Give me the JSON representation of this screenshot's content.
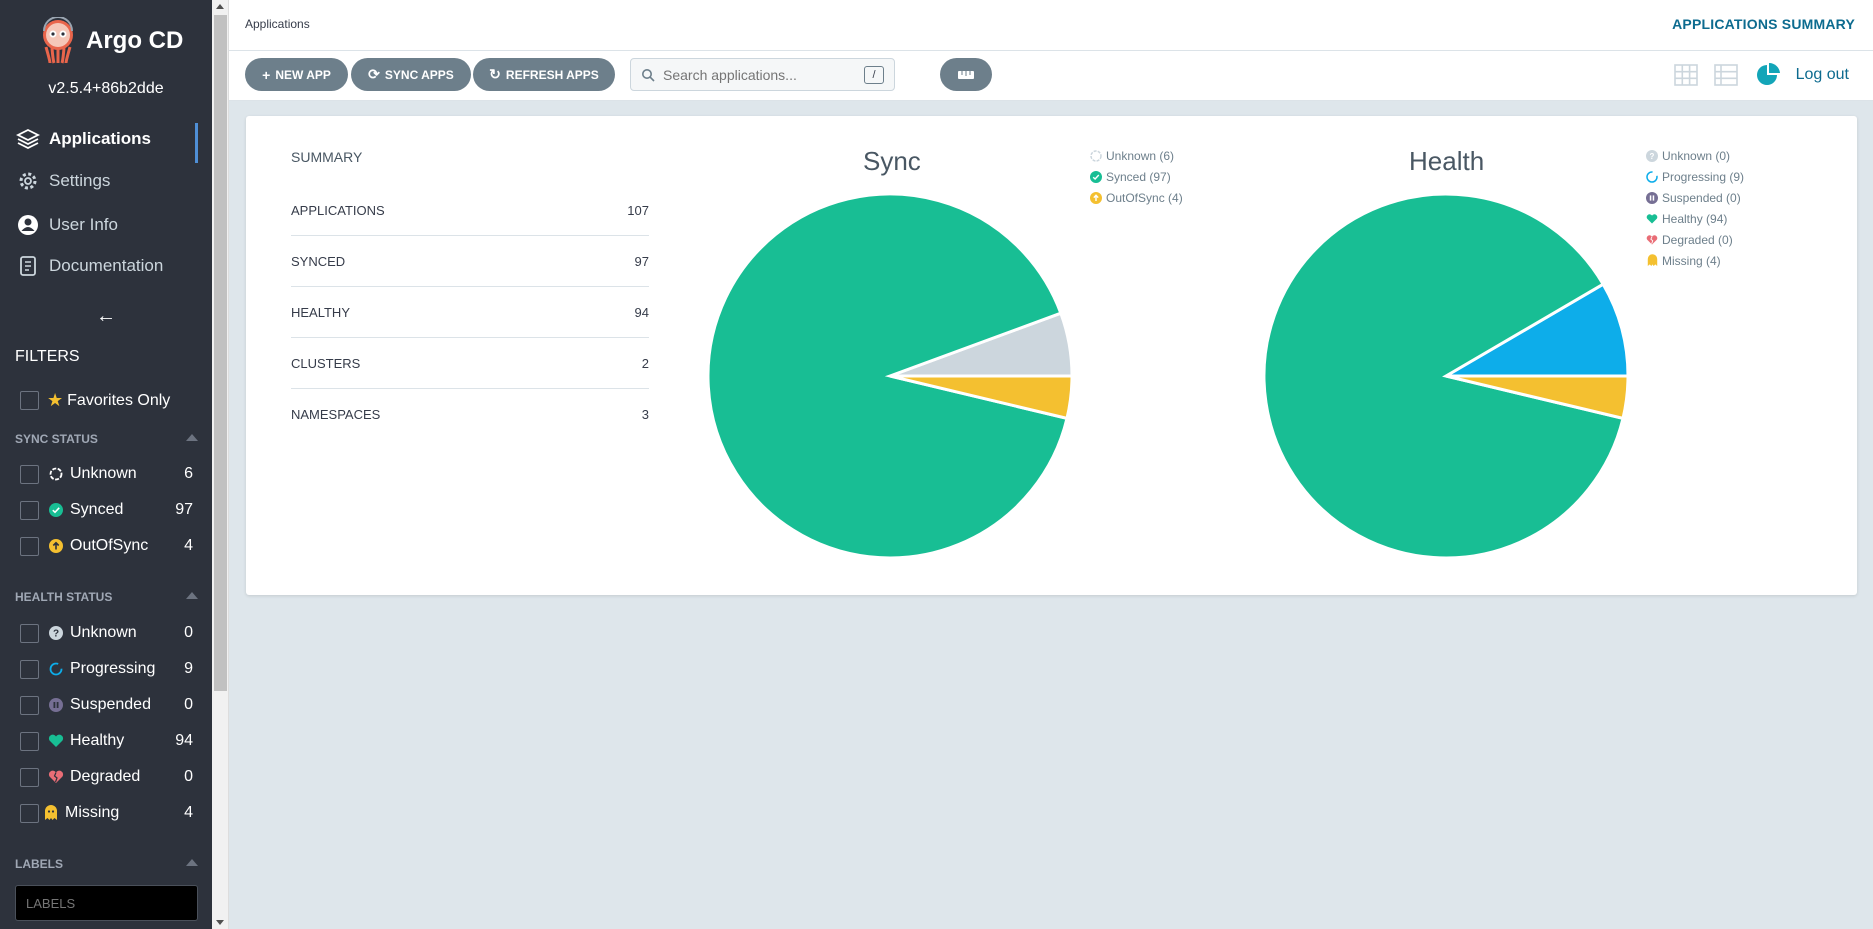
{
  "sidebar": {
    "brand": "Argo CD",
    "version": "v2.5.4+86b2dde",
    "nav": [
      {
        "label": "Applications",
        "icon": "layers-icon",
        "active": true
      },
      {
        "label": "Settings",
        "icon": "gear-icon"
      },
      {
        "label": "User Info",
        "icon": "user-icon"
      },
      {
        "label": "Documentation",
        "icon": "book-icon"
      }
    ],
    "filters_title": "FILTERS",
    "favorites_label": "Favorites Only",
    "sync_status": {
      "title": "SYNC STATUS",
      "items": [
        {
          "label": "Unknown",
          "count": "6"
        },
        {
          "label": "Synced",
          "count": "97"
        },
        {
          "label": "OutOfSync",
          "count": "4"
        }
      ]
    },
    "health_status": {
      "title": "HEALTH STATUS",
      "items": [
        {
          "label": "Unknown",
          "count": "0"
        },
        {
          "label": "Progressing",
          "count": "9"
        },
        {
          "label": "Suspended",
          "count": "0"
        },
        {
          "label": "Healthy",
          "count": "94"
        },
        {
          "label": "Degraded",
          "count": "0"
        },
        {
          "label": "Missing",
          "count": "4"
        }
      ]
    },
    "labels": {
      "title": "LABELS",
      "placeholder": "LABELS"
    }
  },
  "header": {
    "breadcrumb": "Applications",
    "page_title": "APPLICATIONS SUMMARY"
  },
  "toolbar": {
    "new_app": "NEW APP",
    "sync_apps": "SYNC APPS",
    "refresh_apps": "REFRESH APPS",
    "search_placeholder": "Search applications...",
    "search_shortcut": "/",
    "logout": "Log out"
  },
  "summary": {
    "title": "SUMMARY",
    "rows": [
      {
        "key": "APPLICATIONS",
        "value": "107"
      },
      {
        "key": "SYNCED",
        "value": "97"
      },
      {
        "key": "HEALTHY",
        "value": "94"
      },
      {
        "key": "CLUSTERS",
        "value": "2"
      },
      {
        "key": "NAMESPACES",
        "value": "3"
      }
    ]
  },
  "colors": {
    "healthy": "#18be94",
    "warning": "#f4c030",
    "unknown": "#ccd6dd",
    "progressing": "#0dadea",
    "suspended": "#766f94",
    "degraded": "#e96d76",
    "accent": "#0d6b8f"
  },
  "chart_data": [
    {
      "type": "pie",
      "title": "Sync",
      "categories": [
        "Unknown",
        "Synced",
        "OutOfSync"
      ],
      "legend": [
        "Unknown (6)",
        "Synced (97)",
        "OutOfSync (4)"
      ],
      "values": [
        6,
        97,
        4
      ],
      "colors": [
        "#ccd6dd",
        "#18be94",
        "#f4c030"
      ],
      "legend_position": "top-right"
    },
    {
      "type": "pie",
      "title": "Health",
      "categories": [
        "Unknown",
        "Progressing",
        "Suspended",
        "Healthy",
        "Degraded",
        "Missing"
      ],
      "legend": [
        "Unknown (0)",
        "Progressing (9)",
        "Suspended (0)",
        "Healthy (94)",
        "Degraded (0)",
        "Missing (4)"
      ],
      "values": [
        0,
        9,
        0,
        94,
        0,
        4
      ],
      "colors": [
        "#ccd6dd",
        "#0dadea",
        "#766f94",
        "#18be94",
        "#e96d76",
        "#f4c030"
      ],
      "legend_position": "top-right"
    }
  ]
}
